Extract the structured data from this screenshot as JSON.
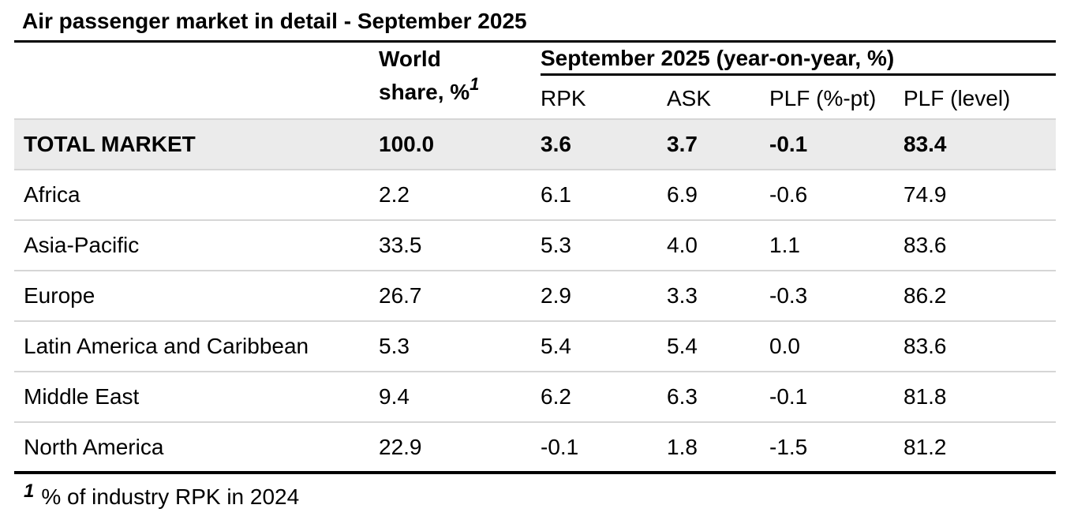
{
  "page": {
    "title": "Air passenger market in detail - September 2025"
  },
  "table": {
    "header": {
      "world_share_line1": "World",
      "world_share_line2": "share, %",
      "world_share_superscript": "1",
      "group_label": "September 2025 (year-on-year, %)",
      "columns": [
        "RPK",
        "ASK",
        "PLF (%-pt)",
        "PLF (level)"
      ]
    },
    "rows": [
      {
        "cells": [
          "TOTAL MARKET",
          "100.0",
          "3.6",
          "3.7",
          "-0.1",
          "83.4"
        ]
      },
      {
        "cells": [
          "Africa",
          "2.2",
          "6.1",
          "6.9",
          "-0.6",
          "74.9"
        ]
      },
      {
        "cells": [
          "Asia-Pacific",
          "33.5",
          "5.3",
          "4.0",
          "1.1",
          "83.6"
        ]
      },
      {
        "cells": [
          "Europe",
          "26.7",
          "2.9",
          "3.3",
          "-0.3",
          "86.2"
        ]
      },
      {
        "cells": [
          "Latin America and Caribbean",
          "5.3",
          "5.4",
          "5.4",
          "0.0",
          "83.6"
        ]
      },
      {
        "cells": [
          "Middle East",
          "9.4",
          "6.2",
          "6.3",
          "-0.1",
          "81.8"
        ]
      },
      {
        "cells": [
          "North America",
          "22.9",
          "-0.1",
          "1.8",
          "-1.5",
          "81.2"
        ]
      }
    ]
  },
  "footnote": {
    "superscript": "1",
    "text": "% of industry RPK in 2024"
  },
  "colors": {
    "text": "#000000",
    "rule": "#000000",
    "highlight_row_bg": "#ebebeb",
    "row_separator": "#d6d6d6"
  }
}
